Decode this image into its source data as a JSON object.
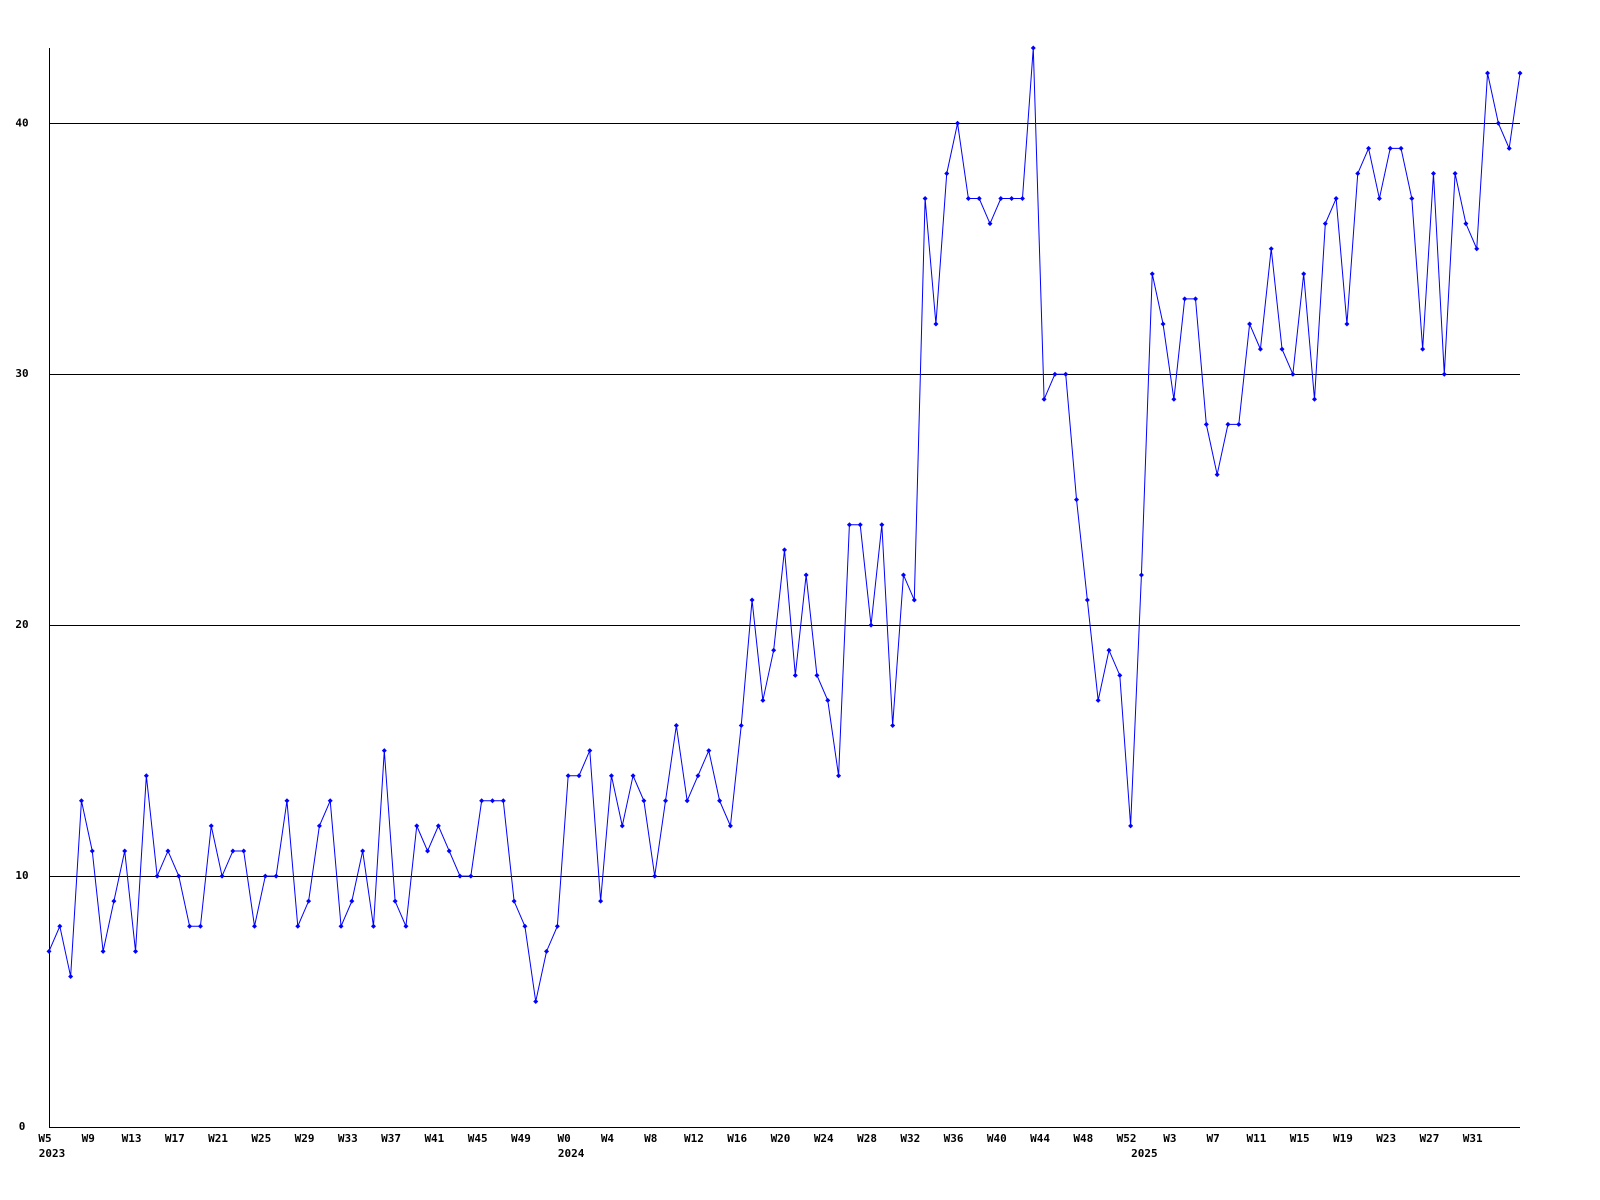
{
  "chart_data": {
    "type": "line",
    "categories": [
      "W5",
      null,
      null,
      null,
      "W9",
      null,
      null,
      null,
      "W13",
      null,
      null,
      null,
      "W17",
      null,
      null,
      null,
      "W21",
      null,
      null,
      null,
      "W25",
      null,
      null,
      null,
      "W29",
      null,
      null,
      null,
      "W33",
      null,
      null,
      null,
      "W37",
      null,
      null,
      null,
      "W41",
      null,
      null,
      null,
      "W45",
      null,
      null,
      null,
      "W49",
      null,
      null,
      null,
      "W0",
      null,
      null,
      null,
      "W4",
      null,
      null,
      null,
      "W8",
      null,
      null,
      null,
      "W12",
      null,
      null,
      null,
      "W16",
      null,
      null,
      null,
      "W20",
      null,
      null,
      null,
      "W24",
      null,
      null,
      null,
      "W28",
      null,
      null,
      null,
      "W32",
      null,
      null,
      null,
      "W36",
      null,
      null,
      null,
      "W40",
      null,
      null,
      null,
      "W44",
      null,
      null,
      null,
      "W48",
      null,
      null,
      null,
      "W52",
      null,
      null,
      null,
      "W3",
      null,
      null,
      null,
      "W7",
      null,
      null,
      null,
      "W11",
      null,
      null,
      null,
      "W15",
      null,
      null,
      null,
      "W19",
      null,
      null,
      null,
      "W23",
      null,
      null,
      null,
      "W27",
      null,
      null,
      null,
      "W31",
      null,
      null,
      null,
      null
    ],
    "category_years": [
      "2023",
      null,
      null,
      null,
      null,
      null,
      null,
      null,
      null,
      null,
      null,
      null,
      null,
      null,
      null,
      null,
      null,
      null,
      null,
      null,
      null,
      null,
      null,
      null,
      null,
      null,
      null,
      null,
      null,
      null,
      null,
      null,
      null,
      null,
      null,
      null,
      null,
      null,
      null,
      null,
      null,
      null,
      null,
      null,
      null,
      null,
      null,
      null,
      "2024",
      null,
      null,
      null,
      null,
      null,
      null,
      null,
      null,
      null,
      null,
      null,
      null,
      null,
      null,
      null,
      null,
      null,
      null,
      null,
      null,
      null,
      null,
      null,
      null,
      null,
      null,
      null,
      null,
      null,
      null,
      null,
      null,
      null,
      null,
      null,
      null,
      null,
      null,
      null,
      null,
      null,
      null,
      null,
      null,
      null,
      null,
      null,
      null,
      null,
      null,
      null,
      null,
      "2025",
      null,
      null,
      null,
      null,
      null,
      null,
      null,
      null,
      null,
      null,
      null,
      null,
      null,
      null,
      null,
      null,
      null,
      null,
      null,
      null,
      null,
      null,
      null,
      null,
      null,
      null,
      null,
      null,
      null,
      null,
      null,
      null,
      null,
      null,
      null
    ],
    "values": [
      7,
      8,
      6,
      13,
      11,
      7,
      9,
      11,
      7,
      14,
      10,
      11,
      10,
      8,
      8,
      12,
      10,
      11,
      11,
      8,
      10,
      10,
      13,
      8,
      9,
      12,
      13,
      8,
      9,
      11,
      8,
      15,
      9,
      8,
      12,
      11,
      12,
      11,
      10,
      10,
      13,
      13,
      13,
      9,
      8,
      5,
      7,
      8,
      14,
      14,
      15,
      9,
      14,
      12,
      14,
      13,
      10,
      13,
      16,
      13,
      14,
      15,
      13,
      12,
      16,
      21,
      17,
      19,
      23,
      18,
      22,
      18,
      17,
      14,
      24,
      24,
      20,
      24,
      16,
      22,
      21,
      37,
      32,
      38,
      40,
      37,
      37,
      36,
      37,
      37,
      37,
      43,
      29,
      30,
      30,
      25,
      21,
      17,
      19,
      18,
      12,
      22,
      34,
      32,
      29,
      33,
      33,
      28,
      26,
      28,
      28,
      32,
      31,
      35,
      31,
      30,
      34,
      29,
      36,
      37,
      32,
      38,
      39,
      37,
      39,
      39,
      37,
      31,
      38,
      30,
      38,
      36,
      35,
      42,
      40,
      39,
      42
    ],
    "color": "#0000ff",
    "ylim": [
      0,
      43
    ],
    "yticks": [
      0,
      10,
      20,
      30,
      40
    ],
    "grid": true
  }
}
